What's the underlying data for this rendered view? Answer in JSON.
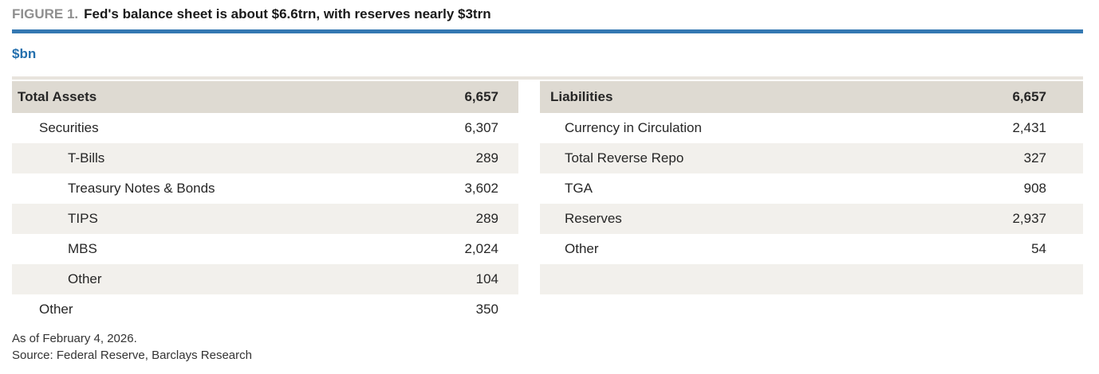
{
  "figure": {
    "label": "FIGURE 1.",
    "title": "Fed's balance sheet is about $6.6trn, with reserves nearly $3trn"
  },
  "units_label": "$bn",
  "balance_sheet": {
    "assets": {
      "header_label": "Total Assets",
      "header_value": "6,657",
      "rows": [
        {
          "label": "Securities",
          "value": "6,307",
          "indent": 1
        },
        {
          "label": "T-Bills",
          "value": "289",
          "indent": 2
        },
        {
          "label": "Treasury Notes & Bonds",
          "value": "3,602",
          "indent": 2
        },
        {
          "label": "TIPS",
          "value": "289",
          "indent": 2
        },
        {
          "label": "MBS",
          "value": "2,024",
          "indent": 2
        },
        {
          "label": "Other",
          "value": "104",
          "indent": 2
        },
        {
          "label": "Other",
          "value": "350",
          "indent": 1
        }
      ]
    },
    "liabilities": {
      "header_label": "Liabilities",
      "header_value": "6,657",
      "rows": [
        {
          "label": "Currency in Circulation",
          "value": "2,431",
          "indent": 1
        },
        {
          "label": "Total Reverse Repo",
          "value": "327",
          "indent": 1
        },
        {
          "label": "TGA",
          "value": "908",
          "indent": 1
        },
        {
          "label": "Reserves",
          "value": "2,937",
          "indent": 1
        },
        {
          "label": "Other",
          "value": "54",
          "indent": 1
        },
        {
          "label": "",
          "value": "",
          "indent": 1
        },
        {
          "label": "",
          "value": "",
          "indent": 1
        }
      ]
    }
  },
  "footnotes": {
    "as_of": "As of February 4, 2026.",
    "source": "Source: Federal Reserve, Barclays Research"
  },
  "colors": {
    "accent_blue": "#3478b2",
    "units_blue": "#2470ae",
    "header_band": "#dedad2",
    "top_rule_tan": "#e8e4dd",
    "row_stripe": "#f2f0ec",
    "figure_label_gray": "#8f8f8f",
    "text": "#262626"
  }
}
